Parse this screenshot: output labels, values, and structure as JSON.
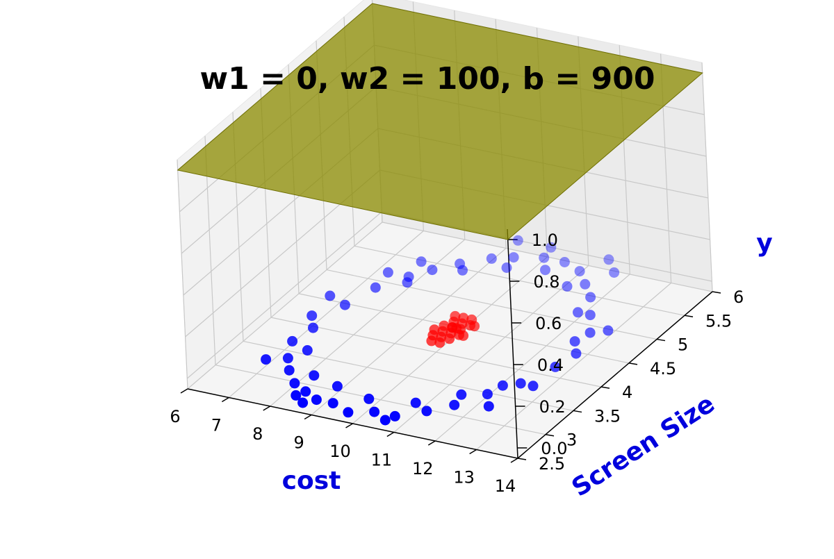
{
  "chart_data": {
    "type": "scatter3d",
    "title": "w1 = 0, w2 = 100, b = 900",
    "xlabel": "cost",
    "ylabel": "Screen Size",
    "zlabel": "y",
    "label_color": "#0000dd",
    "x_ticks": [
      "6",
      "7",
      "8",
      "9",
      "10",
      "11",
      "12",
      "13",
      "14"
    ],
    "y_ticks": [
      "2.5",
      "3",
      "3.5",
      "4",
      "4.5",
      "5",
      "5.5",
      "6"
    ],
    "z_ticks": [
      "0.0",
      "0.2",
      "0.4",
      "0.6",
      "0.8",
      "1.0"
    ],
    "xlim": [
      6,
      14
    ],
    "ylim": [
      2.5,
      6
    ],
    "zlim": [
      0,
      1
    ],
    "grid": true,
    "plane": {
      "z": 1.0,
      "color": "#8b8b00",
      "opacity": 0.75
    },
    "series": [
      {
        "color": "#ff0000",
        "points": [
          [
            9.9,
            4.2,
            0
          ],
          [
            10.0,
            4.3,
            0
          ],
          [
            10.1,
            4.2,
            0
          ],
          [
            10.2,
            4.3,
            0
          ],
          [
            10.0,
            4.1,
            0
          ],
          [
            9.8,
            4.3,
            0
          ],
          [
            10.3,
            4.4,
            0
          ],
          [
            10.1,
            4.4,
            0
          ],
          [
            9.9,
            4.4,
            0
          ],
          [
            10.2,
            4.1,
            0
          ],
          [
            10.0,
            4.5,
            0
          ],
          [
            9.8,
            4.1,
            0
          ],
          [
            10.4,
            4.2,
            0
          ],
          [
            10.1,
            4.0,
            0
          ],
          [
            9.7,
            4.2,
            0
          ],
          [
            10.3,
            4.2,
            0
          ],
          [
            10.2,
            4.5,
            0
          ],
          [
            9.9,
            4.0,
            0
          ],
          [
            10.0,
            4.3,
            0
          ],
          [
            10.4,
            4.4,
            0
          ],
          [
            9.8,
            4.5,
            0
          ],
          [
            10.1,
            4.3,
            0
          ]
        ]
      },
      {
        "color": "#0000ff",
        "points": [
          [
            7.0,
            4.0,
            0
          ],
          [
            7.2,
            3.5,
            0
          ],
          [
            7.4,
            4.3,
            0
          ],
          [
            7.5,
            3.2,
            0
          ],
          [
            7.6,
            4.7,
            0
          ],
          [
            7.8,
            3.0,
            0
          ],
          [
            8.0,
            5.0,
            0
          ],
          [
            8.2,
            2.8,
            0
          ],
          [
            8.3,
            5.2,
            0
          ],
          [
            8.6,
            2.7,
            0
          ],
          [
            8.7,
            5.4,
            0
          ],
          [
            9.0,
            2.6,
            0
          ],
          [
            9.2,
            5.6,
            0
          ],
          [
            9.4,
            2.6,
            0
          ],
          [
            9.6,
            5.7,
            0
          ],
          [
            9.9,
            2.5,
            0
          ],
          [
            10.2,
            5.8,
            0
          ],
          [
            10.4,
            2.6,
            0
          ],
          [
            10.7,
            5.8,
            0
          ],
          [
            10.9,
            2.6,
            0
          ],
          [
            11.2,
            5.7,
            0
          ],
          [
            11.4,
            2.8,
            0
          ],
          [
            11.6,
            5.5,
            0
          ],
          [
            11.8,
            3.0,
            0
          ],
          [
            12.0,
            5.3,
            0
          ],
          [
            12.2,
            3.3,
            0
          ],
          [
            12.4,
            5.0,
            0
          ],
          [
            12.6,
            3.6,
            0
          ],
          [
            12.8,
            4.7,
            0
          ],
          [
            12.9,
            4.0,
            0
          ],
          [
            13.0,
            4.3,
            0
          ],
          [
            7.3,
            3.8,
            0
          ],
          [
            7.7,
            3.4,
            0
          ],
          [
            8.1,
            4.9,
            0
          ],
          [
            8.4,
            3.0,
            0
          ],
          [
            8.9,
            5.3,
            0
          ],
          [
            9.1,
            2.9,
            0
          ],
          [
            9.7,
            5.5,
            0
          ],
          [
            10.0,
            2.8,
            0
          ],
          [
            10.5,
            5.6,
            0
          ],
          [
            11.0,
            2.9,
            0
          ],
          [
            11.3,
            5.4,
            0
          ],
          [
            11.7,
            3.2,
            0
          ],
          [
            12.1,
            5.0,
            0
          ],
          [
            12.3,
            3.5,
            0
          ],
          [
            12.7,
            4.5,
            0
          ],
          [
            6.9,
            4.4,
            0
          ],
          [
            7.1,
            3.1,
            0
          ],
          [
            8.8,
            2.5,
            0
          ],
          [
            11.5,
            6.0,
            0
          ],
          [
            12.5,
            3.1,
            0
          ],
          [
            13.1,
            4.8,
            0
          ],
          [
            7.9,
            5.3,
            0
          ],
          [
            10.8,
            2.5,
            0
          ],
          [
            9.3,
            6.0,
            0
          ],
          [
            11.9,
            5.8,
            0
          ],
          [
            8.5,
            2.6,
            0
          ],
          [
            12.9,
            3.6,
            0
          ],
          [
            7.5,
            5.0,
            0
          ],
          [
            10.1,
            6.0,
            0
          ]
        ]
      }
    ]
  }
}
